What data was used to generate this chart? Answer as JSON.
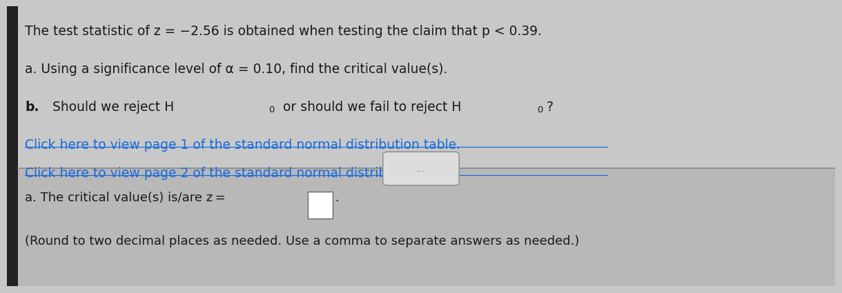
{
  "bg_color": "#c8c8c8",
  "bg_color_bottom": "#b8b8b8",
  "text_color": "#1a1a1a",
  "link_color": "#1a6adb",
  "line1": "The test statistic of z = −2.56 is obtained when testing the claim that p < 0.39.",
  "line2": "a. Using a significance level of α = 0.10, find the critical value(s).",
  "link1": "Click here to view page 1 of the standard normal distribution table.",
  "link2": "Click here to view page 2 of the standard normal distribution table.",
  "bottom_line1_pre": "a. The critical value(s) is/are z = ",
  "bottom_line2": "(Round to two decimal places as needed. Use a comma to separate answers as needed.)",
  "divider_color": "#888888",
  "ellipsis_box_color": "#dddddd",
  "ellipsis_text_color": "#555555",
  "left_bar_color": "#222222",
  "font_size_main": 13.5,
  "font_size_bottom": 13.0
}
